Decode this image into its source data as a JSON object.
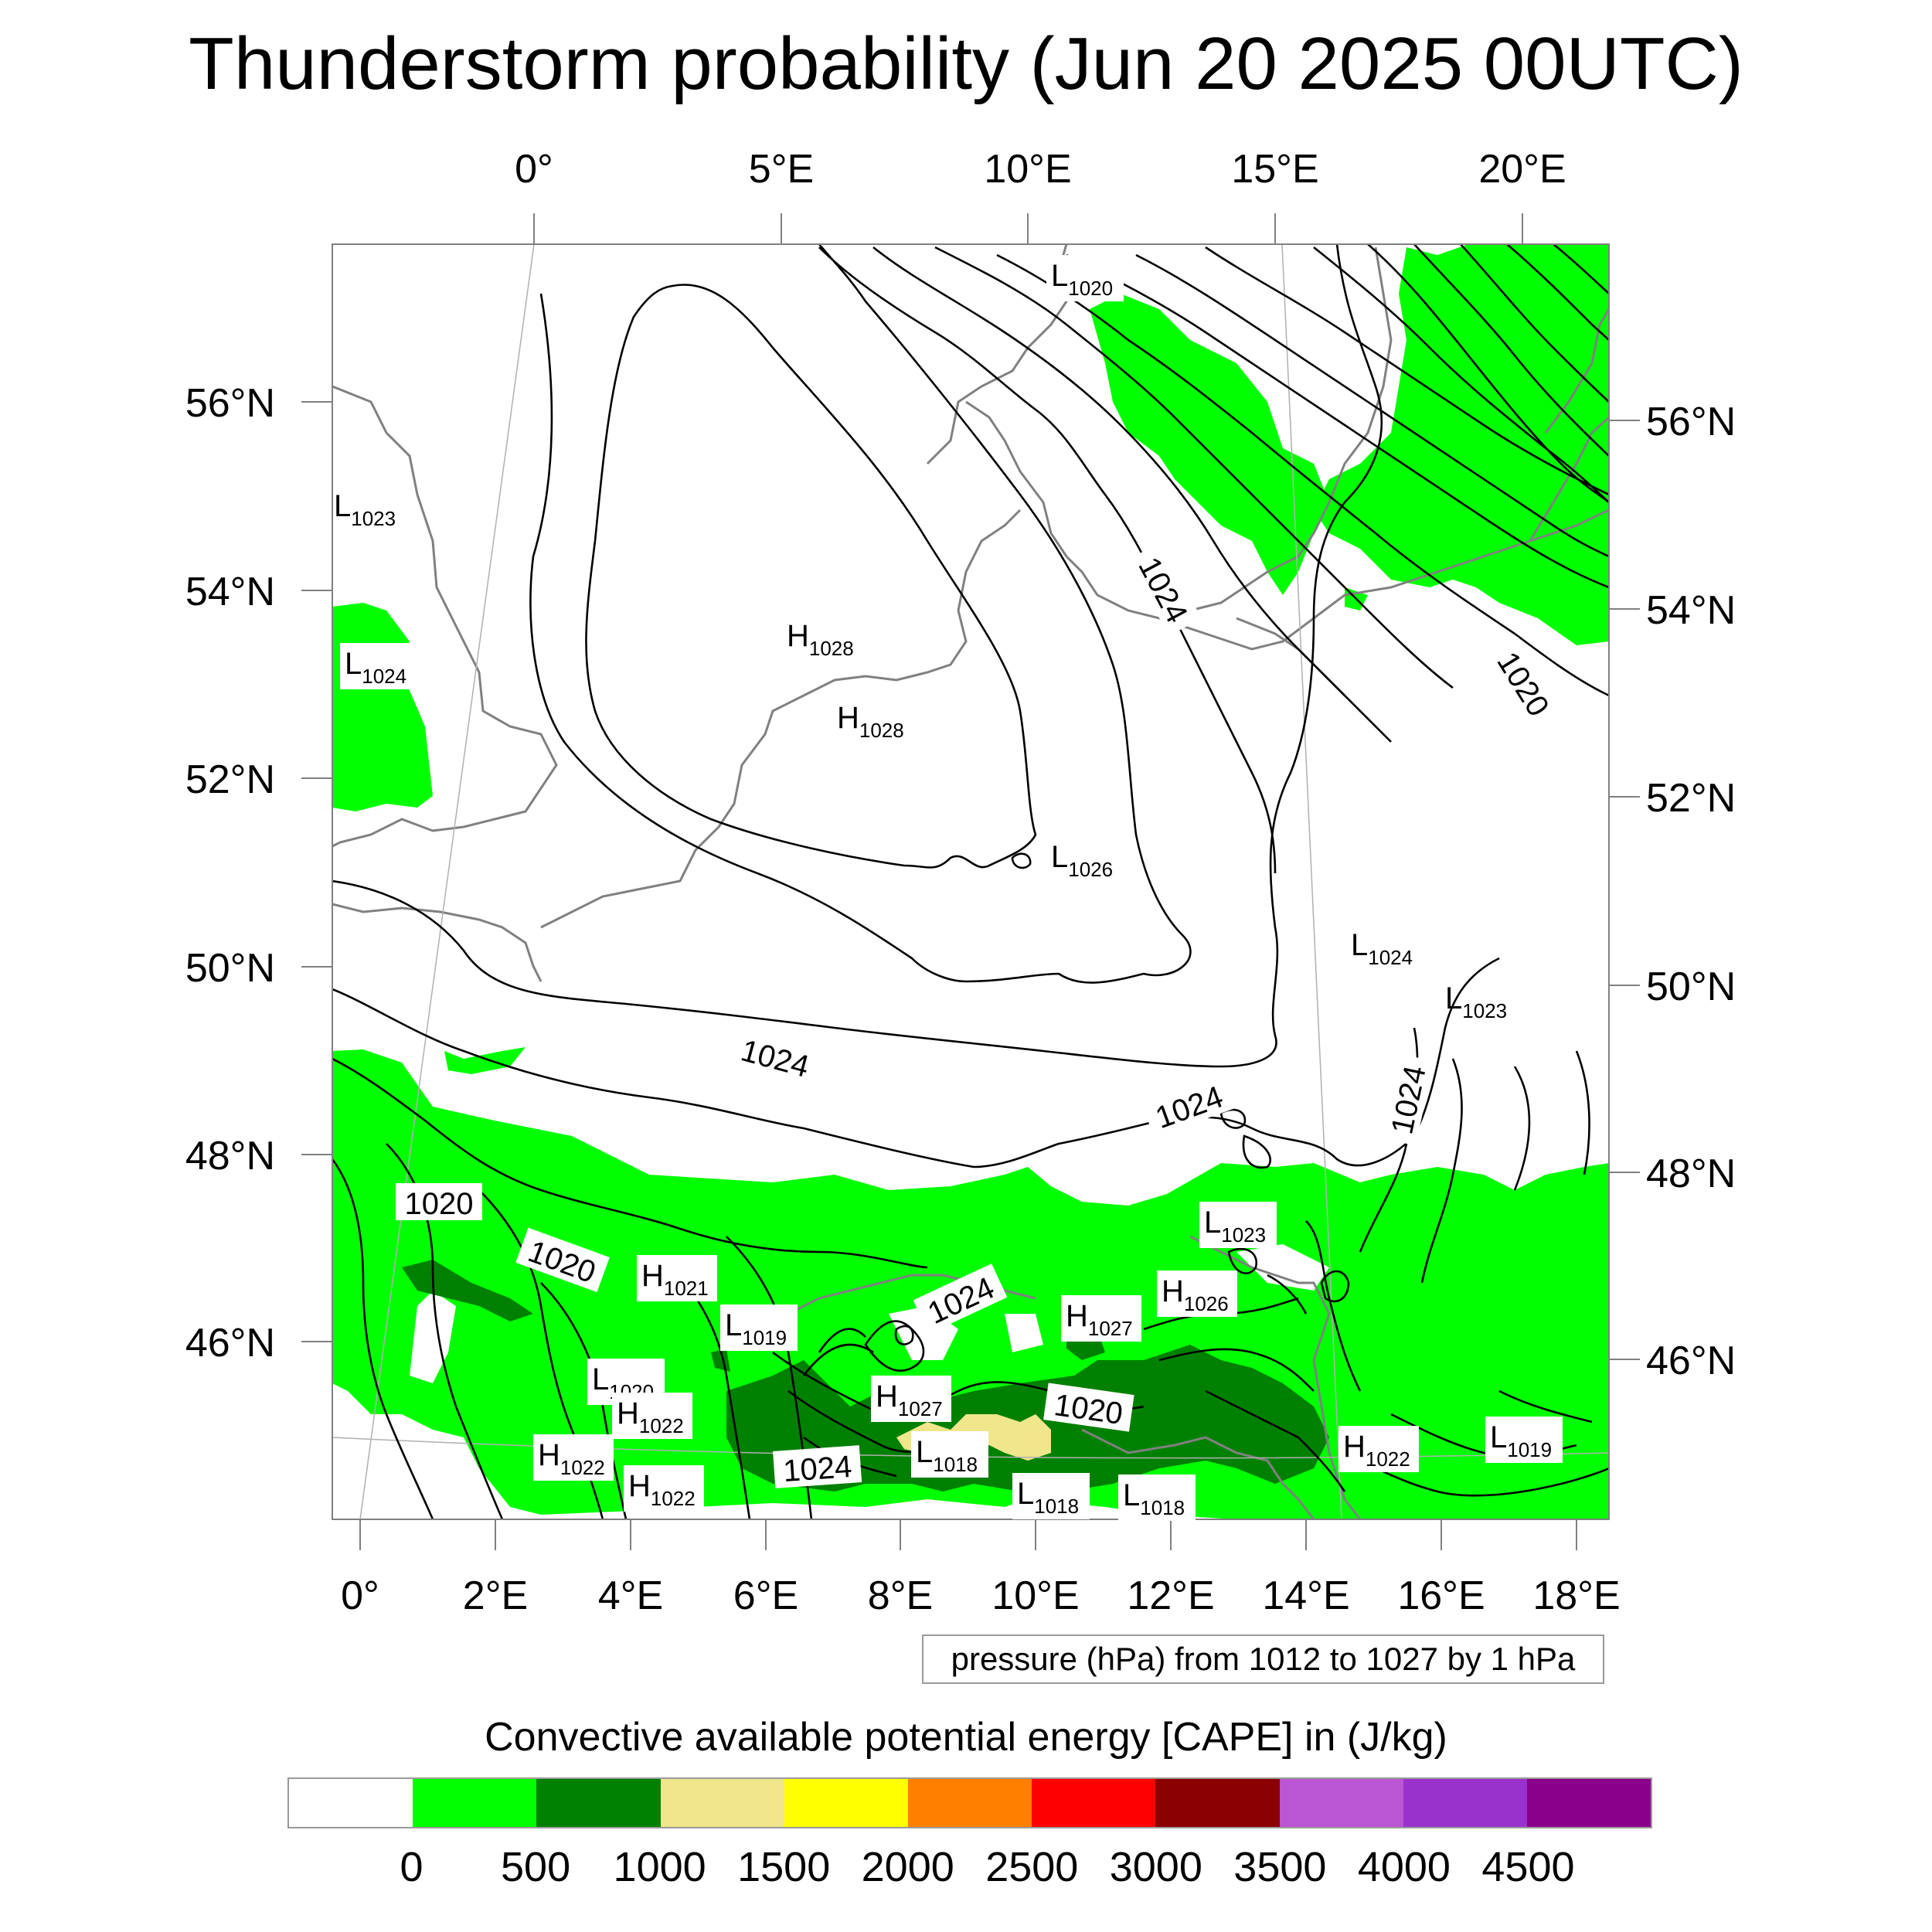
{
  "title": "Thunderstorm probability (Jun 20 2025 00UTC)",
  "top_lon_labels": [
    "0°",
    "5°E",
    "10°E",
    "15°E",
    "20°E"
  ],
  "bottom_lon_labels": [
    "0°",
    "2°E",
    "4°E",
    "6°E",
    "8°E",
    "10°E",
    "12°E",
    "14°E",
    "16°E",
    "18°E"
  ],
  "left_lat_labels": [
    "56°N",
    "54°N",
    "52°N",
    "50°N",
    "48°N",
    "46°N"
  ],
  "right_lat_labels": [
    "56°N",
    "54°N",
    "52°N",
    "50°N",
    "48°N",
    "46°N"
  ],
  "pressure_centers": [
    {
      "letter": "L",
      "value": "1020"
    },
    {
      "letter": "L",
      "value": "1023"
    },
    {
      "letter": "L",
      "value": "1024"
    },
    {
      "letter": "H",
      "value": "1028"
    },
    {
      "letter": "H",
      "value": "1028"
    },
    {
      "letter": "L",
      "value": "1026"
    },
    {
      "letter": "L",
      "value": "1024"
    },
    {
      "letter": "L",
      "value": "1023"
    },
    {
      "letter": "L",
      "value": "1023"
    },
    {
      "letter": "H",
      "value": "1021"
    },
    {
      "letter": "L",
      "value": "1019"
    },
    {
      "letter": "H",
      "value": "1027"
    },
    {
      "letter": "H",
      "value": "1026"
    },
    {
      "letter": "L",
      "value": "1020"
    },
    {
      "letter": "H",
      "value": "1022"
    },
    {
      "letter": "H",
      "value": "1027"
    },
    {
      "letter": "H",
      "value": "1022"
    },
    {
      "letter": "H",
      "value": "1022"
    },
    {
      "letter": "L",
      "value": "1018"
    },
    {
      "letter": "L",
      "value": "1018"
    },
    {
      "letter": "L",
      "value": "1018"
    },
    {
      "letter": "H",
      "value": "1022"
    },
    {
      "letter": "L",
      "value": "1019"
    }
  ],
  "isobar_labels": [
    "1024",
    "1020",
    "1024",
    "1024",
    "1024",
    "1020",
    "1020",
    "1024",
    "1020",
    "1024"
  ],
  "legend_note": "pressure (hPa) from 1012 to 1027 by 1 hPa",
  "colorbar": {
    "title": "Convective available potential energy [CAPE] in (J/kg)",
    "colors": [
      "#ffffff",
      "#00ff00",
      "#008000",
      "#f0e68c",
      "#ffff00",
      "#ff8000",
      "#ff0000",
      "#8b0000",
      "#ba55d3",
      "#9932cc",
      "#8b008b"
    ],
    "ticks": [
      "0",
      "500",
      "1000",
      "1500",
      "2000",
      "2500",
      "3000",
      "3500",
      "4000",
      "4500"
    ]
  }
}
